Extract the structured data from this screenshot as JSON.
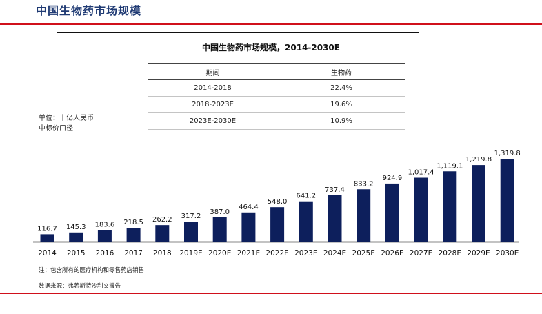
{
  "header": {
    "title": "中国生物药市场规模"
  },
  "figure": {
    "title": "中国生物药市场规模，2014-2030E",
    "unit_line1": "单位：十亿人民币",
    "unit_line2": "中标价口径"
  },
  "growth_table": {
    "headers": [
      "期间",
      "生物药"
    ],
    "rows": [
      [
        "2014-2018",
        "22.4%"
      ],
      [
        "2018-2023E",
        "19.6%"
      ],
      [
        "2023E-2030E",
        "10.9%"
      ]
    ]
  },
  "footnotes": {
    "note": "注：包含所有的医疗机构和零售药店销售",
    "source": "数据来源：弗若斯特沙利文报告"
  },
  "colors": {
    "bar": "#0d1f5c",
    "accent_rule": "#d0101b",
    "header_text": "#1f3a73"
  },
  "chart_data": {
    "type": "bar",
    "title": "中国生物药市场规模，2014-2030E",
    "categories": [
      "2014",
      "2015",
      "2016",
      "2017",
      "2018",
      "2019E",
      "2020E",
      "2021E",
      "2022E",
      "2023E",
      "2024E",
      "2025E",
      "2026E",
      "2027E",
      "2028E",
      "2029E",
      "2030E"
    ],
    "values": [
      116.7,
      145.3,
      183.6,
      218.5,
      262.2,
      317.2,
      387.0,
      464.4,
      548.0,
      641.2,
      737.4,
      833.2,
      924.9,
      1017.4,
      1119.1,
      1219.8,
      1319.8
    ],
    "value_labels": [
      "116.7",
      "145.3",
      "183.6",
      "218.5",
      "262.2",
      "317.2",
      "387.0",
      "464.4",
      "548.0",
      "641.2",
      "737.4",
      "833.2",
      "924.9",
      "1,017.4",
      "1,119.1",
      "1,219.8",
      "1,319.8"
    ],
    "ylabel": "单位：十亿人民币",
    "xlabel": "",
    "ylim": [
      0,
      1320
    ],
    "grid": false,
    "legend": "none"
  }
}
